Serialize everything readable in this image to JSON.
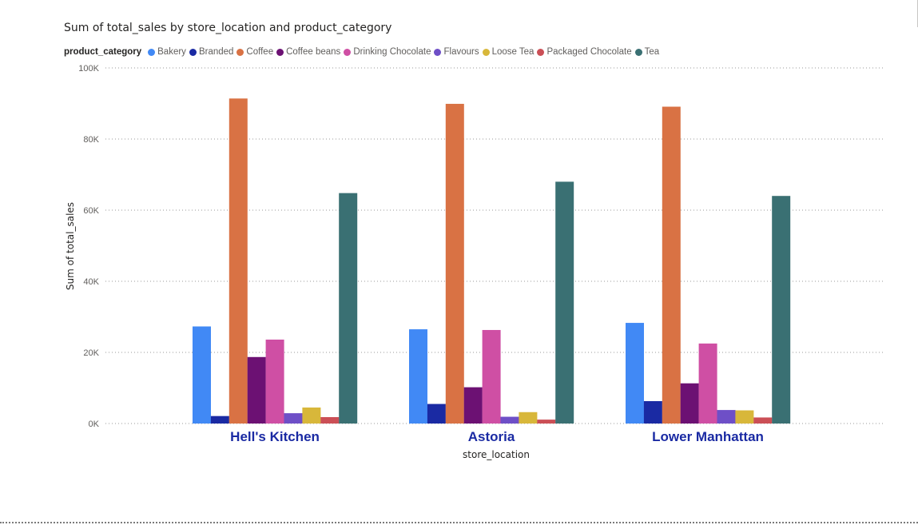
{
  "chart_data": {
    "type": "bar",
    "title": "Sum of total_sales by store_location and product_category",
    "legend_title": "product_category",
    "legend_position": "top-left",
    "xlabel": "store_location",
    "ylabel": "Sum of total_sales",
    "ylim": [
      0,
      100000
    ],
    "yticks": [
      0,
      20000,
      40000,
      60000,
      80000,
      100000
    ],
    "ytick_labels": [
      "0K",
      "20K",
      "40K",
      "60K",
      "80K",
      "100K"
    ],
    "grid": "horizontal-dotted",
    "categories": [
      "Hell's Kitchen",
      "Astoria",
      "Lower Manhattan"
    ],
    "series": [
      {
        "name": "Bakery",
        "color": "#4189f5",
        "values": [
          27300,
          26500,
          28300
        ]
      },
      {
        "name": "Branded",
        "color": "#1a2aa3",
        "values": [
          2100,
          5500,
          6300
        ]
      },
      {
        "name": "Coffee",
        "color": "#d97244",
        "values": [
          91400,
          89900,
          89100
        ]
      },
      {
        "name": "Coffee beans",
        "color": "#6c1173",
        "values": [
          18700,
          10200,
          11300
        ]
      },
      {
        "name": "Drinking Chocolate",
        "color": "#cf4fa4",
        "values": [
          23600,
          26300,
          22500
        ]
      },
      {
        "name": "Flavours",
        "color": "#6e4fc7",
        "values": [
          2900,
          1900,
          3800
        ]
      },
      {
        "name": "Loose Tea",
        "color": "#d8b73a",
        "values": [
          4500,
          3200,
          3700
        ]
      },
      {
        "name": "Packaged Chocolate",
        "color": "#cb4f56",
        "values": [
          1800,
          1100,
          1700
        ]
      },
      {
        "name": "Tea",
        "color": "#3a7073",
        "values": [
          64800,
          68000,
          64000
        ]
      }
    ]
  }
}
